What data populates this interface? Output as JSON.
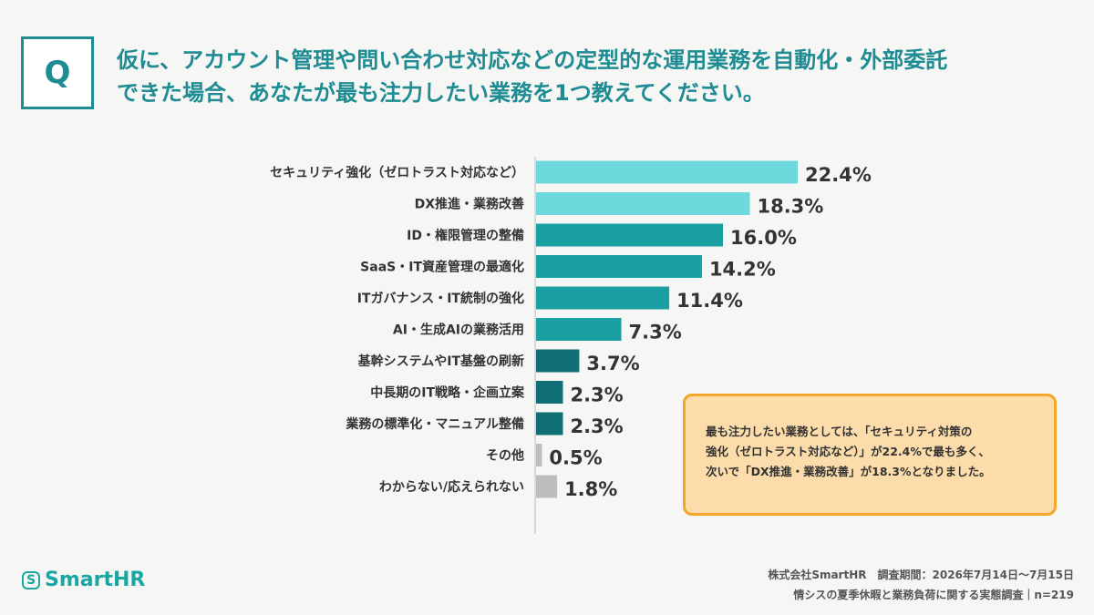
{
  "question": {
    "badge": "Q",
    "lines": [
      "仮に、アカウント管理や問い合わせ対応などの定型的な運用業務を自動化・外部委託",
      "できた場合、あなたが最も注力したい業務を1つ教えてください。"
    ]
  },
  "chart_data": {
    "type": "bar",
    "orientation": "horizontal",
    "categories": [
      "セキュリティ強化（ゼロトラスト対応など）",
      "DX推進・業務改善",
      "ID・権限管理の整備",
      "SaaS・IT資産管理の最適化",
      "ITガバナンス・IT統制の強化",
      "AI・生成AIの業務活用",
      "基幹システムやIT基盤の刷新",
      "中長期のIT戦略・企画立案",
      "業務の標準化・マニュアル整備",
      "その他",
      "わからない/応えられない"
    ],
    "values": [
      22.4,
      18.3,
      16.0,
      14.2,
      11.4,
      7.3,
      3.7,
      2.3,
      2.3,
      0.5,
      1.8
    ],
    "value_labels": [
      "22.4%",
      "18.3%",
      "16.0%",
      "14.2%",
      "11.4%",
      "7.3%",
      "3.7%",
      "2.3%",
      "2.3%",
      "0.5%",
      "1.8%"
    ],
    "colors": [
      "#6dd9dc",
      "#6dd9dc",
      "#1a9fa3",
      "#1a9fa3",
      "#1a9fa3",
      "#1a9fa3",
      "#0f6f74",
      "#0f6f74",
      "#0f6f74",
      "#bdbdbd",
      "#bdbdbd"
    ],
    "xlim": [
      0,
      22.4
    ],
    "grid": false
  },
  "callout": {
    "lines": [
      "最も注力したい業務としては、「セキュリティ対策の",
      "強化（ゼロトラスト対応など）」が22.4%で最も多く、",
      "次いで「DX推進・業務改善」が18.3%となりました。"
    ]
  },
  "logo": {
    "mark": "S",
    "text": "SmartHR"
  },
  "footer": {
    "line1": "株式会社SmartHR　調査期間：2026年7月14日～7月15日",
    "line2": "情シスの夏季休暇と業務負荷に関する実態調査｜n=219"
  }
}
